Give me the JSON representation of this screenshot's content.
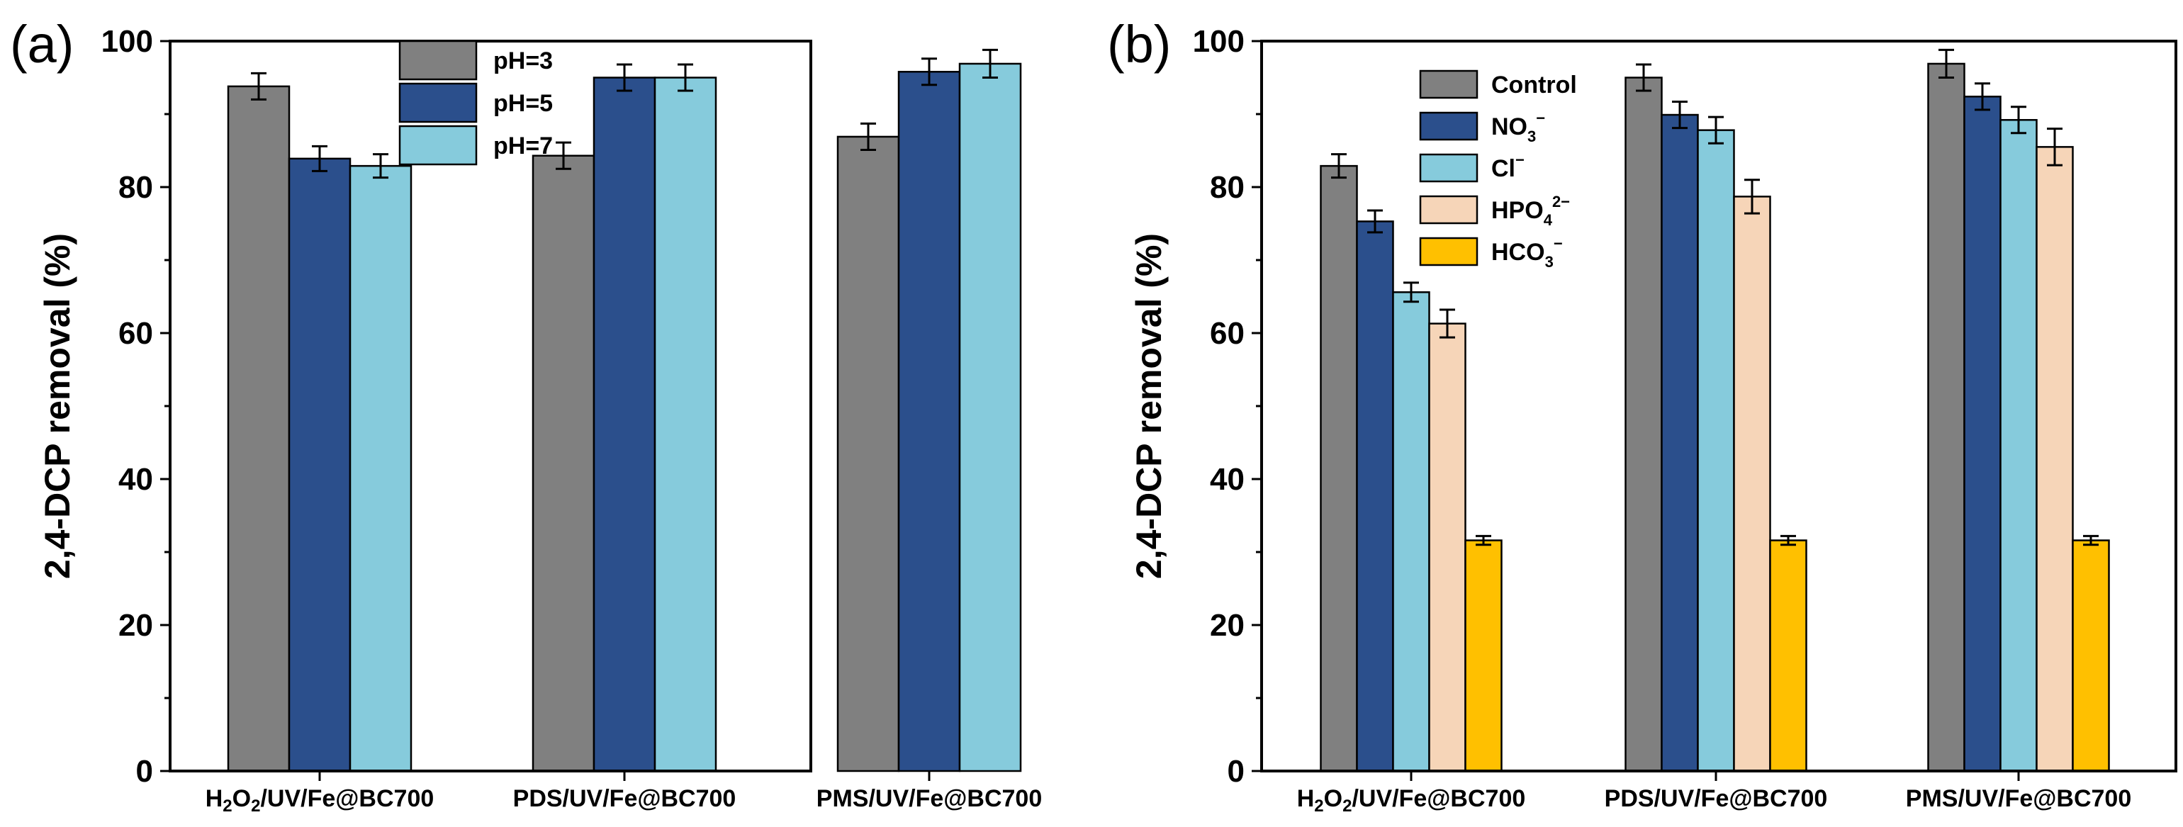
{
  "chart_data": [
    {
      "type": "bar",
      "panel_label": "(a)",
      "title": "",
      "xlabel": "",
      "ylabel": "2,4-DCP removal (%)",
      "ylim": [
        0,
        100
      ],
      "yticks": [
        "0",
        "20",
        "40",
        "60",
        "80",
        "100"
      ],
      "grid": false,
      "legend_position": "top-center",
      "categories": [
        {
          "base": "H",
          "sub1": "2",
          "mid": "O",
          "sub2": "2",
          "tail": "/UV/Fe@BC700"
        },
        {
          "base": "PDS/UV/Fe@BC700"
        },
        {
          "base": "PMS/UV/Fe@BC700"
        }
      ],
      "series": [
        {
          "name": "pH=3",
          "color": "#808080",
          "values": [
            93.8,
            84.3,
            86.9
          ],
          "errors": [
            1.8,
            1.8,
            1.8
          ]
        },
        {
          "name": "pH=5",
          "color": "#2b4f8c",
          "values": [
            83.9,
            95.0,
            95.8
          ],
          "errors": [
            1.7,
            1.8,
            1.8
          ]
        },
        {
          "name": "pH=7",
          "color": "#86cbdc",
          "values": [
            82.9,
            95.0,
            96.9
          ],
          "errors": [
            1.6,
            1.8,
            1.9
          ]
        }
      ]
    },
    {
      "type": "bar",
      "panel_label": "(b)",
      "title": "",
      "xlabel": "",
      "ylabel": "2,4-DCP removal (%)",
      "ylim": [
        0,
        100
      ],
      "yticks": [
        "0",
        "20",
        "40",
        "60",
        "80",
        "100"
      ],
      "grid": false,
      "legend_position": "top-center",
      "categories": [
        {
          "base": "H",
          "sub1": "2",
          "mid": "O",
          "sub2": "2",
          "tail": "/UV/Fe@BC700"
        },
        {
          "base": "PDS/UV/Fe@BC700"
        },
        {
          "base": "PMS/UV/Fe@BC700"
        }
      ],
      "series": [
        {
          "name": "Control",
          "label": {
            "base": "Control"
          },
          "color": "#808080",
          "values": [
            82.9,
            95.0,
            96.9
          ],
          "errors": [
            1.6,
            1.8,
            1.9
          ]
        },
        {
          "name": "NO3−",
          "label": {
            "base": "NO",
            "sub": "3",
            "sup": "−"
          },
          "color": "#2b4f8c",
          "values": [
            75.3,
            89.9,
            92.4
          ],
          "errors": [
            1.5,
            1.8,
            1.8
          ]
        },
        {
          "name": "Cl−",
          "label": {
            "base": "Cl",
            "sup": "−"
          },
          "color": "#86cbdc",
          "values": [
            65.6,
            87.8,
            89.2
          ],
          "errors": [
            1.3,
            1.8,
            1.8
          ]
        },
        {
          "name": "HPO42−",
          "label": {
            "base": "HPO",
            "sub": "4",
            "sup": "2−"
          },
          "color": "#f6d5b8",
          "values": [
            61.3,
            78.7,
            85.5
          ],
          "errors": [
            1.9,
            2.3,
            2.5
          ]
        },
        {
          "name": "HCO3−",
          "label": {
            "base": "HCO",
            "sub": "3",
            "sup": "−"
          },
          "color": "#ffc000",
          "values": [
            31.6,
            31.6,
            31.6
          ],
          "errors": [
            0.6,
            0.6,
            0.6
          ]
        }
      ]
    }
  ]
}
